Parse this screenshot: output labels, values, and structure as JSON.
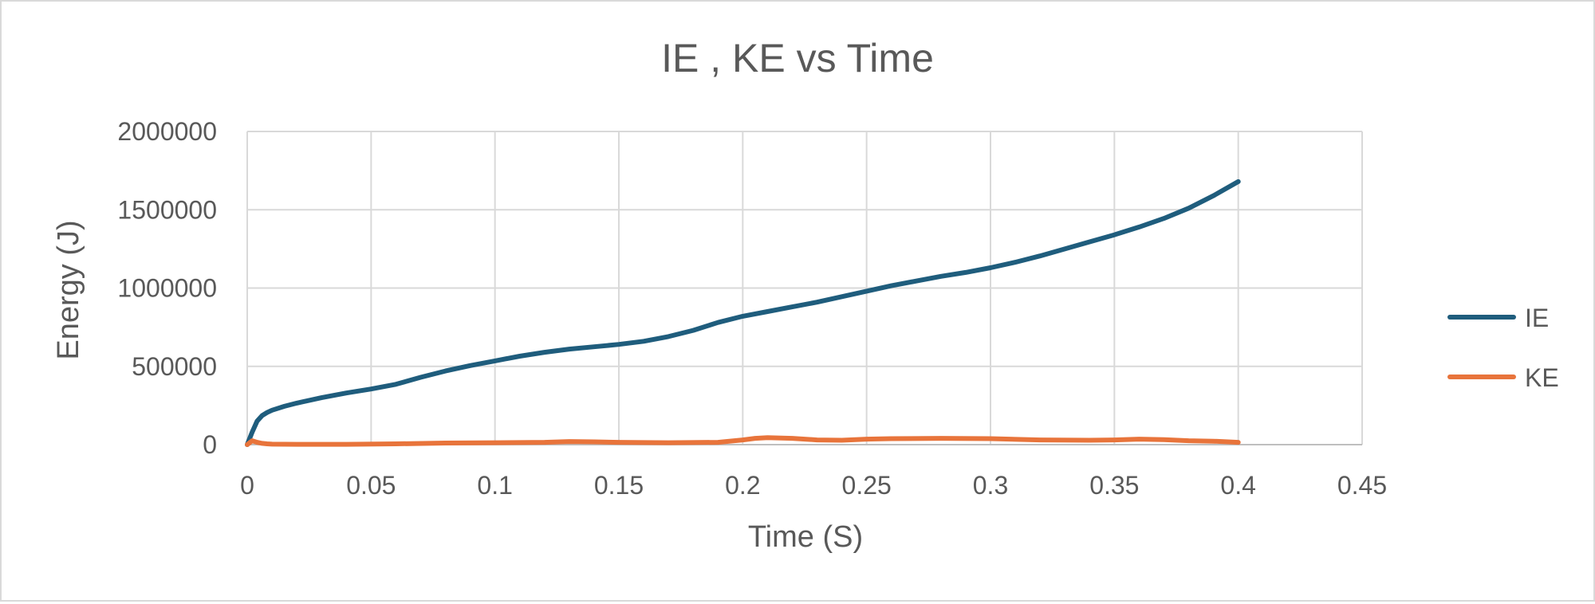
{
  "chart_data": {
    "type": "line",
    "title": "IE , KE vs Time",
    "xlabel": "Time (S)",
    "ylabel": "Energy (J)",
    "xlim": [
      0,
      0.45
    ],
    "ylim": [
      0,
      2000000
    ],
    "x_ticks": [
      "0",
      "0.05",
      "0.1",
      "0.15",
      "0.2",
      "0.25",
      "0.3",
      "0.35",
      "0.4",
      "0.45"
    ],
    "y_ticks": [
      "0",
      "500000",
      "1000000",
      "1500000",
      "2000000"
    ],
    "grid": true,
    "legend_position": "right",
    "series": [
      {
        "name": "IE",
        "color": "#1f5d7d",
        "x": [
          0,
          0.002,
          0.004,
          0.006,
          0.008,
          0.01,
          0.015,
          0.02,
          0.03,
          0.04,
          0.05,
          0.06,
          0.07,
          0.08,
          0.09,
          0.1,
          0.11,
          0.12,
          0.13,
          0.14,
          0.15,
          0.16,
          0.17,
          0.18,
          0.19,
          0.2,
          0.21,
          0.22,
          0.23,
          0.24,
          0.25,
          0.26,
          0.27,
          0.28,
          0.29,
          0.3,
          0.31,
          0.32,
          0.33,
          0.34,
          0.35,
          0.36,
          0.37,
          0.38,
          0.39,
          0.4
        ],
        "values": [
          0,
          80000,
          150000,
          185000,
          205000,
          220000,
          245000,
          265000,
          300000,
          330000,
          355000,
          385000,
          430000,
          470000,
          505000,
          535000,
          565000,
          590000,
          610000,
          625000,
          640000,
          660000,
          690000,
          730000,
          780000,
          820000,
          850000,
          880000,
          910000,
          945000,
          980000,
          1015000,
          1045000,
          1075000,
          1100000,
          1130000,
          1165000,
          1205000,
          1250000,
          1295000,
          1340000,
          1390000,
          1445000,
          1510000,
          1590000,
          1680000
        ]
      },
      {
        "name": "KE",
        "color": "#e8743b",
        "x": [
          0,
          0.002,
          0.004,
          0.006,
          0.008,
          0.01,
          0.02,
          0.04,
          0.06,
          0.08,
          0.1,
          0.12,
          0.13,
          0.14,
          0.15,
          0.17,
          0.19,
          0.2,
          0.205,
          0.21,
          0.22,
          0.23,
          0.24,
          0.25,
          0.26,
          0.28,
          0.3,
          0.32,
          0.34,
          0.35,
          0.36,
          0.37,
          0.38,
          0.39,
          0.4
        ],
        "values": [
          0,
          25000,
          15000,
          8000,
          5000,
          3000,
          2000,
          2000,
          5000,
          10000,
          12000,
          15000,
          20000,
          18000,
          15000,
          12000,
          15000,
          30000,
          40000,
          45000,
          40000,
          30000,
          28000,
          35000,
          38000,
          40000,
          38000,
          30000,
          28000,
          30000,
          35000,
          32000,
          25000,
          22000,
          15000
        ]
      }
    ]
  }
}
